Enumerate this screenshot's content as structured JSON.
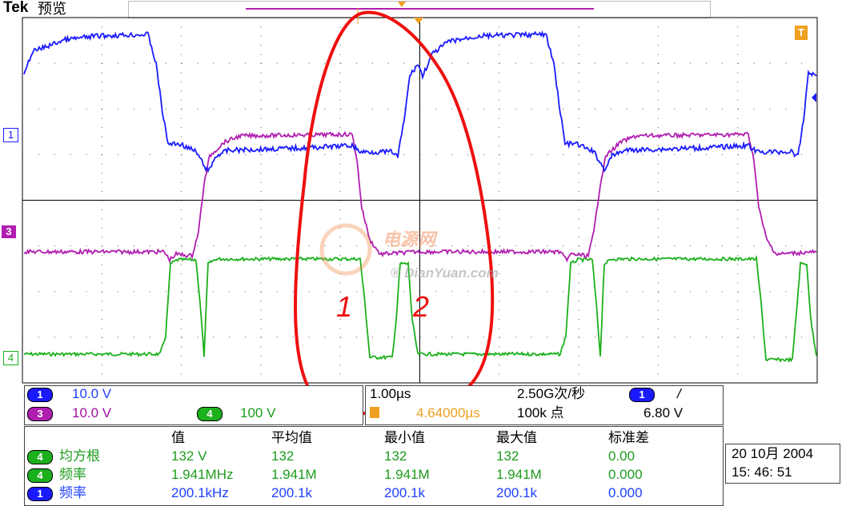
{
  "header": {
    "brand": "Tek",
    "mode": "预览",
    "trigger_marker": "T",
    "trigger_marker_right": "T"
  },
  "channel_markers": {
    "ch1": "1",
    "ch3": "3",
    "ch4": "4",
    "trigger_level": "T"
  },
  "annotations": {
    "label_1": "1",
    "label_2": "2"
  },
  "watermark": {
    "text_cn": "电源网",
    "text_en": "® DianYuan.com"
  },
  "channels": [
    {
      "num": "1",
      "scale": "10.0 V",
      "color": "#1a1aff",
      "text_color": "#1f3fff"
    },
    {
      "num": "3",
      "scale": "10.0 V",
      "color": "#b01eb0",
      "text_color": "#a010a0"
    },
    {
      "num": "4",
      "scale": "100 V",
      "color": "#1cb01c",
      "text_color": "#1c9c1c"
    }
  ],
  "timebase": {
    "time_div": "1.00µs",
    "trigger_position": "4.64000µs",
    "sample_rate": "2.50G次/秒",
    "record_length": "100k 点",
    "trigger_source": "1",
    "trigger_slope": "/",
    "trigger_level": "6.80 V"
  },
  "measurements": {
    "headers": [
      "值",
      "平均值",
      "最小值",
      "最大值",
      "标准差"
    ],
    "rows": [
      {
        "channel": "4",
        "name": "均方根",
        "values": [
          "132 V",
          "132",
          "132",
          "132",
          "0.00"
        ]
      },
      {
        "channel": "4",
        "name": "频率",
        "values": [
          "1.941MHz",
          "1.941M",
          "1.941M",
          "1.941M",
          "0.000"
        ]
      },
      {
        "channel": "1",
        "name": "频率",
        "values": [
          "200.1kHz",
          "200.1k",
          "200.1k",
          "200.1k",
          "0.000"
        ]
      }
    ]
  },
  "datetime": {
    "date": "20 10月 2004",
    "time": "15: 46: 51"
  },
  "colors": {
    "ch1": "#1a1aff",
    "ch3": "#b01eb0",
    "ch4": "#1cb01c",
    "annotation": "#ee1010",
    "trigger": "#f0a020",
    "grid": "#000000"
  }
}
